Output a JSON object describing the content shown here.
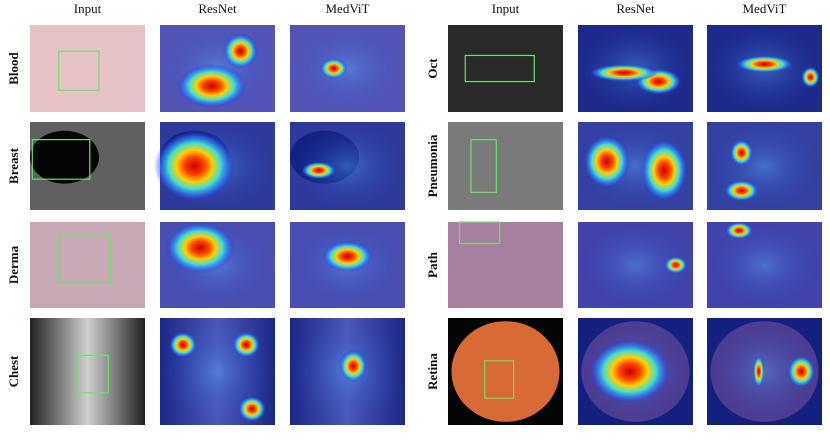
{
  "panels": [
    {
      "headers": [
        "Input",
        "ResNet",
        "MedViT"
      ],
      "rows": [
        "Blood",
        "Breast",
        "Derma",
        "Chest"
      ]
    },
    {
      "headers": [
        "Input",
        "ResNet",
        "MedViT"
      ],
      "rows": [
        "Oct",
        "Pneumonia",
        "Path",
        "Retina"
      ]
    }
  ]
}
